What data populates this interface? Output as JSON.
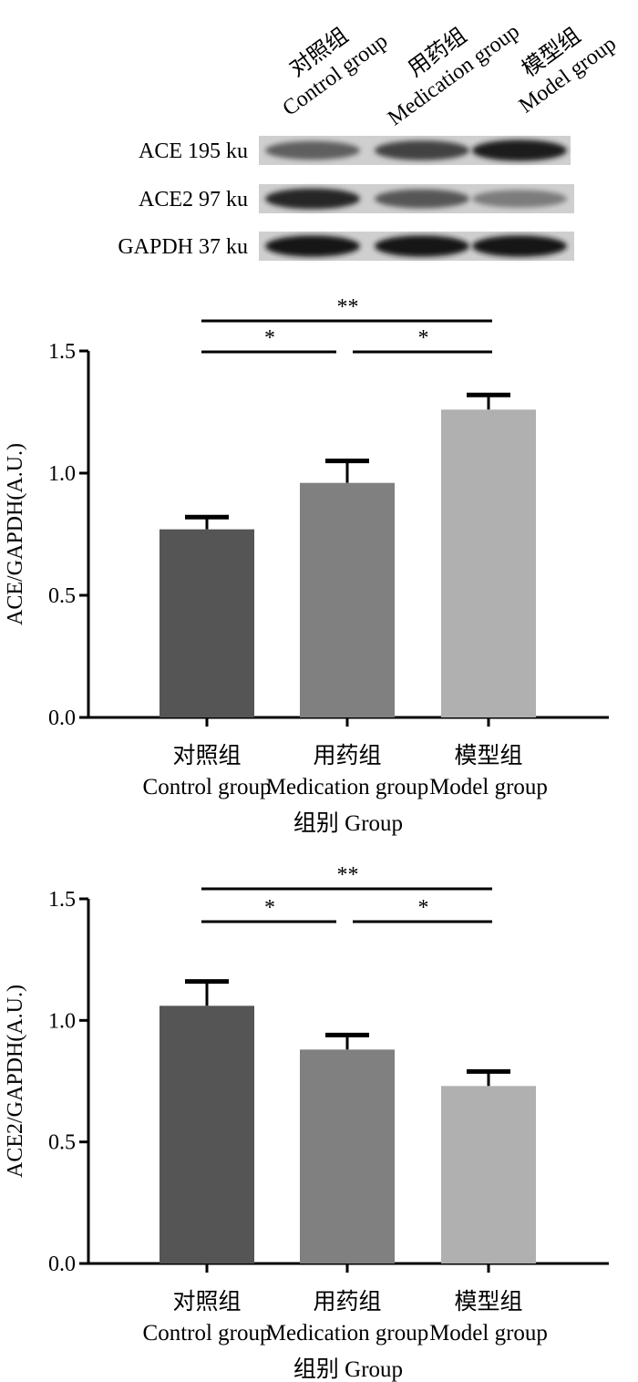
{
  "blot": {
    "lane_headers": [
      {
        "cn": "对照组",
        "en": "Control group"
      },
      {
        "cn": "用药组",
        "en": "Medication group"
      },
      {
        "cn": "模型组",
        "en": "Model group"
      }
    ],
    "rows": [
      {
        "label": "ACE 195 ku",
        "intensities": [
          0.55,
          0.7,
          0.9
        ]
      },
      {
        "label": "ACE2 97 ku",
        "intensities": [
          0.85,
          0.6,
          0.4
        ]
      },
      {
        "label": "GAPDH 37 ku",
        "intensities": [
          0.92,
          0.92,
          0.92
        ]
      }
    ]
  },
  "chart_data": [
    {
      "type": "bar",
      "categories": [
        {
          "cn": "对照组",
          "en": "Control group"
        },
        {
          "cn": "用药组",
          "en": "Medication group"
        },
        {
          "cn": "模型组",
          "en": "Model group"
        }
      ],
      "values": [
        0.77,
        0.96,
        1.26
      ],
      "errors": [
        0.05,
        0.09,
        0.06
      ],
      "ylabel": "ACE/GAPDH(A.U.)",
      "xlabel": "组别 Group",
      "ylim": [
        0,
        1.5
      ],
      "yticks": [
        "0.0",
        "0.5",
        "1.0",
        "1.5"
      ],
      "bar_colors": [
        "#555555",
        "#808080",
        "#b0b0b0"
      ],
      "significance": [
        {
          "from": 0,
          "to": 1,
          "label": "*"
        },
        {
          "from": 1,
          "to": 2,
          "label": "*"
        },
        {
          "from": 0,
          "to": 2,
          "label": "**"
        }
      ]
    },
    {
      "type": "bar",
      "categories": [
        {
          "cn": "对照组",
          "en": "Control group"
        },
        {
          "cn": "用药组",
          "en": "Medication group"
        },
        {
          "cn": "模型组",
          "en": "Model group"
        }
      ],
      "values": [
        1.06,
        0.88,
        0.73
      ],
      "errors": [
        0.1,
        0.06,
        0.06
      ],
      "ylabel": "ACE2/GAPDH(A.U.)",
      "xlabel": "组别 Group",
      "ylim": [
        0,
        1.5
      ],
      "yticks": [
        "0.0",
        "0.5",
        "1.0",
        "1.5"
      ],
      "bar_colors": [
        "#555555",
        "#808080",
        "#b0b0b0"
      ],
      "significance": [
        {
          "from": 0,
          "to": 1,
          "label": "*"
        },
        {
          "from": 1,
          "to": 2,
          "label": "*"
        },
        {
          "from": 0,
          "to": 2,
          "label": "**"
        }
      ]
    }
  ]
}
